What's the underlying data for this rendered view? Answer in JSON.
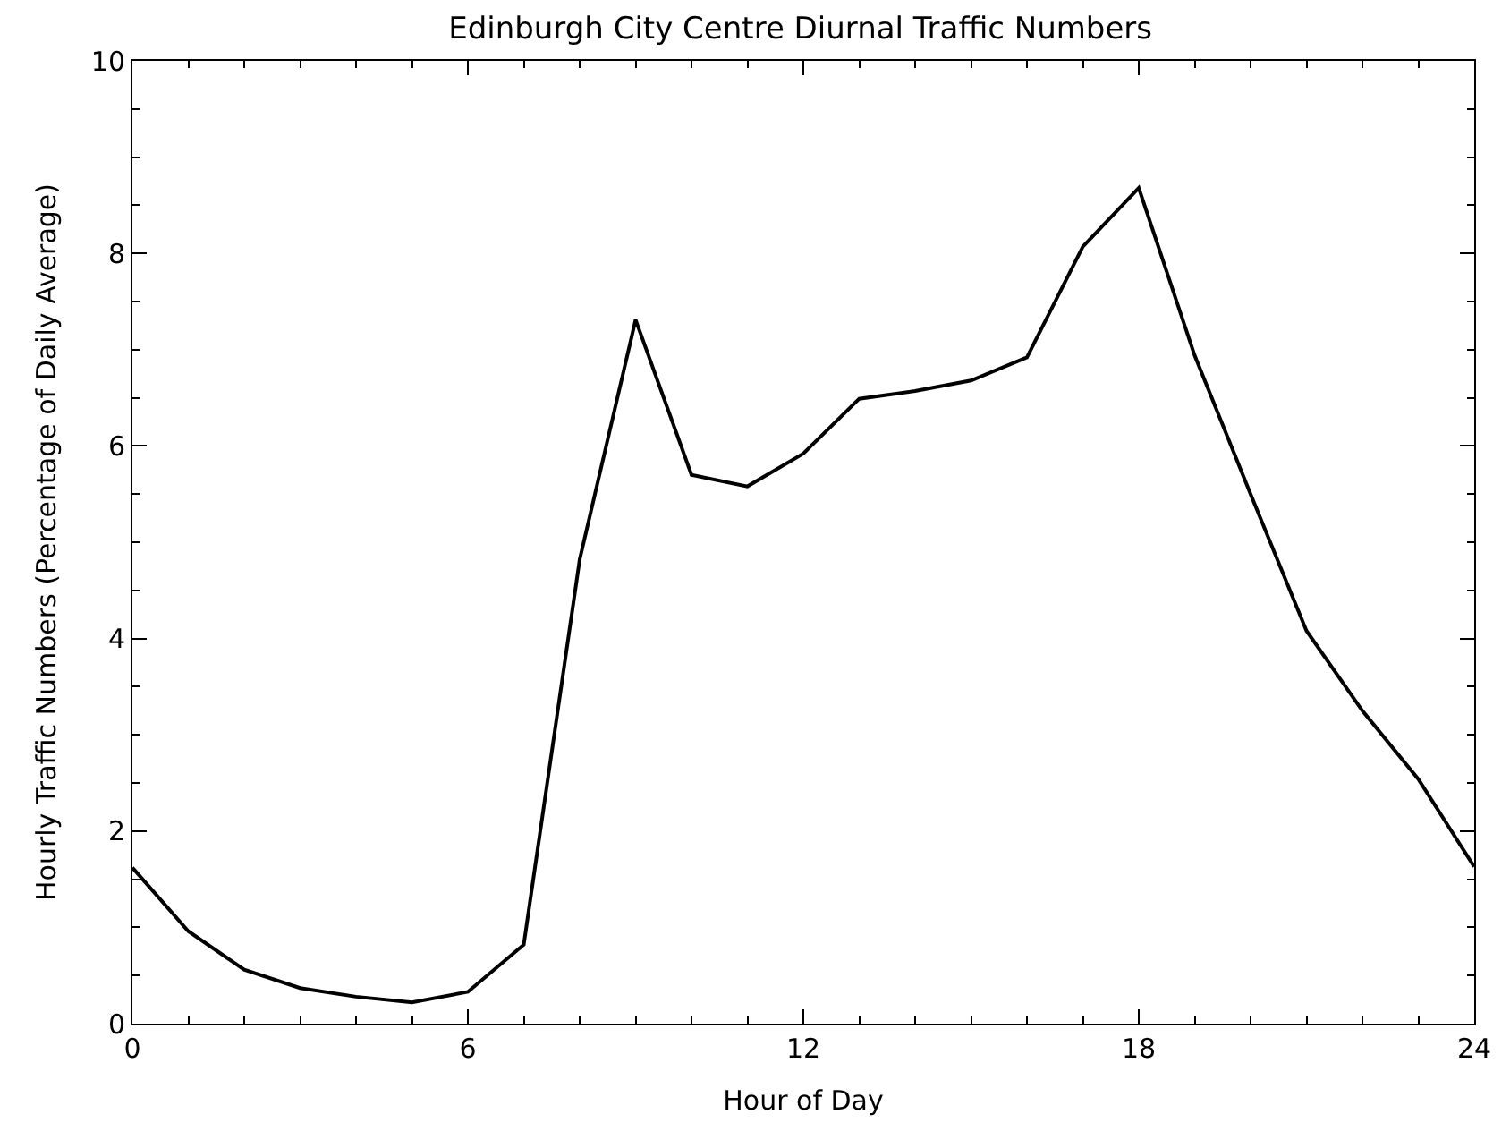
{
  "chart_data": {
    "type": "line",
    "title": "Edinburgh City Centre Diurnal Traffic Numbers",
    "xlabel": "Hour of Day",
    "ylabel": "Hourly Traffic Numbers (Percentage of Daily Average)",
    "x": [
      0,
      1,
      2,
      3,
      4,
      5,
      6,
      7,
      8,
      9,
      10,
      11,
      12,
      13,
      14,
      15,
      16,
      17,
      18,
      19,
      20,
      21,
      22,
      23,
      24
    ],
    "series": [
      {
        "color": "#000000",
        "values": [
          1.62,
          0.96,
          0.56,
          0.37,
          0.28,
          0.22,
          0.33,
          0.82,
          4.82,
          7.31,
          5.7,
          5.58,
          5.92,
          6.49,
          6.57,
          6.68,
          6.92,
          8.07,
          8.68,
          6.94,
          5.5,
          4.08,
          3.25,
          2.54,
          1.63
        ]
      }
    ],
    "xlim": [
      0,
      24
    ],
    "xticks": [
      0,
      6,
      12,
      18,
      24
    ],
    "ylim": [
      0,
      10
    ],
    "yticks": [
      0,
      2,
      4,
      6,
      8,
      10
    ],
    "grid": false,
    "marker": "none",
    "line_style": "solid"
  }
}
